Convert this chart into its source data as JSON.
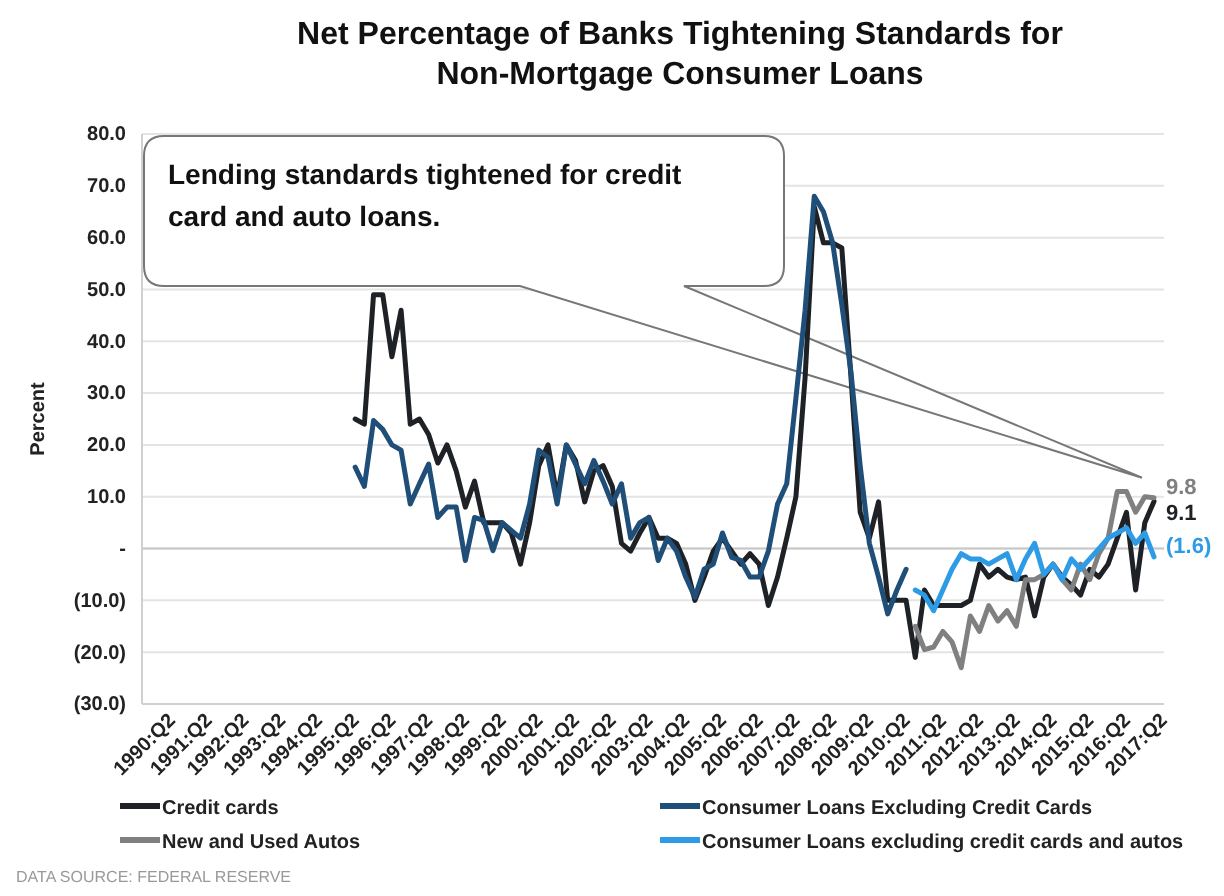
{
  "chart_data": {
    "type": "line",
    "title": "Net Percentage of Banks Tightening Standards for Non-Mortgage Consumer Loans",
    "ylabel": "Percent",
    "categories": [
      "1990:Q2",
      null,
      null,
      null,
      "1991:Q2",
      null,
      null,
      null,
      "1992:Q2",
      null,
      null,
      null,
      "1993:Q2",
      null,
      null,
      null,
      "1994:Q2",
      null,
      null,
      null,
      "1995:Q2",
      null,
      null,
      null,
      "1996:Q2",
      null,
      null,
      null,
      "1997:Q2",
      null,
      null,
      null,
      "1998:Q2",
      null,
      null,
      null,
      "1999:Q2",
      null,
      null,
      null,
      "2000:Q2",
      null,
      null,
      null,
      "2001:Q2",
      null,
      null,
      null,
      "2002:Q2",
      null,
      null,
      null,
      "2003:Q2",
      null,
      null,
      null,
      "2004:Q2",
      null,
      null,
      null,
      "2005:Q2",
      null,
      null,
      null,
      "2006:Q2",
      null,
      null,
      null,
      "2007:Q2",
      null,
      null,
      null,
      "2008:Q2",
      null,
      null,
      null,
      "2009:Q2",
      null,
      null,
      null,
      "2010:Q2",
      null,
      null,
      null,
      "2011:Q2",
      null,
      null,
      null,
      "2012:Q2",
      null,
      null,
      null,
      "2013:Q2",
      null,
      null,
      null,
      "2014:Q2",
      null,
      null,
      null,
      "2015:Q2",
      null,
      null,
      null,
      "2016:Q2",
      null,
      null,
      null,
      "2017:Q2",
      null,
      null
    ],
    "ylim": [
      -30,
      80
    ],
    "yticks": [
      {
        "value": -30,
        "label": "(30.0)"
      },
      {
        "value": -20,
        "label": "(20.0)"
      },
      {
        "value": -10,
        "label": "(10.0)"
      },
      {
        "value": 0,
        "label": "-"
      },
      {
        "value": 10,
        "label": "10.0"
      },
      {
        "value": 20,
        "label": "20.0"
      },
      {
        "value": 30,
        "label": "30.0"
      },
      {
        "value": 40,
        "label": "40.0"
      },
      {
        "value": 50,
        "label": "50.0"
      },
      {
        "value": 60,
        "label": "60.0"
      },
      {
        "value": 70,
        "label": "70.0"
      },
      {
        "value": 80,
        "label": "80.0"
      }
    ],
    "grid": "y",
    "legend": "bottom",
    "marker": "none",
    "line_style": "solid",
    "series": [
      {
        "name": "Credit cards",
        "color": "#1e2227",
        "values": [
          null,
          null,
          null,
          null,
          null,
          null,
          null,
          null,
          null,
          null,
          null,
          null,
          null,
          null,
          null,
          null,
          null,
          null,
          null,
          null,
          null,
          null,
          null,
          25,
          24,
          49,
          49,
          37,
          46,
          24,
          25,
          22,
          16.5,
          20,
          15,
          8,
          13,
          5,
          5,
          5,
          3,
          -3,
          5,
          16,
          20,
          10,
          20,
          17,
          9,
          15,
          16,
          12,
          1,
          -0.5,
          3,
          6,
          2,
          2,
          1,
          -3,
          -10,
          -5.5,
          -0.5,
          2,
          -0.5,
          -3,
          -1,
          -3,
          -11,
          -5.5,
          2,
          10,
          33,
          66,
          59,
          59,
          58,
          33,
          7,
          2,
          9,
          -10,
          -10,
          -10,
          -21,
          -8,
          -11,
          -11,
          -11,
          -11,
          -10,
          -3,
          -5.5,
          -4,
          -5.5,
          -6,
          -5.5,
          -13,
          -5.5,
          -3,
          -5.5,
          -7,
          -9,
          -4,
          -5.5,
          -3,
          2,
          7,
          -8,
          5,
          9.1
        ],
        "value_labels": [
          null,
          null,
          null,
          null,
          null,
          null,
          null,
          null,
          null,
          null,
          null,
          null,
          null,
          null,
          null,
          null,
          null,
          null,
          null,
          null,
          null,
          null,
          null,
          null,
          null,
          null,
          null,
          null,
          null,
          null,
          null,
          null,
          null,
          null,
          null,
          null,
          null,
          null,
          null,
          null,
          null,
          null,
          null,
          null,
          null,
          null,
          null,
          null,
          null,
          null,
          null,
          null,
          null,
          null,
          null,
          null,
          null,
          null,
          null,
          null,
          null,
          null,
          null,
          null,
          null,
          null,
          null,
          null,
          null,
          null,
          null,
          null,
          null,
          null,
          null,
          null,
          null,
          null,
          null,
          null,
          null,
          null,
          null,
          null,
          null,
          null,
          null,
          null,
          null,
          null,
          null,
          null,
          null,
          null,
          null,
          null,
          null,
          null,
          null,
          null,
          null,
          null,
          null,
          null,
          null,
          null,
          null,
          null,
          null,
          null,
          "9.1"
        ]
      },
      {
        "name": "Consumer Loans Excluding Credit Cards",
        "color": "#1f4e79",
        "values": [
          null,
          null,
          null,
          null,
          null,
          null,
          null,
          null,
          null,
          null,
          null,
          null,
          null,
          null,
          null,
          null,
          null,
          null,
          null,
          null,
          null,
          null,
          null,
          15.7,
          12,
          24.7,
          23,
          20,
          19,
          8.6,
          12.5,
          16.3,
          6,
          8,
          8,
          -2.3,
          6,
          5.4,
          -0.4,
          5,
          3.5,
          2,
          8.6,
          19,
          17.6,
          8.6,
          20,
          16.3,
          12.5,
          17,
          13,
          8.6,
          12.5,
          2,
          5,
          6,
          -2.3,
          2,
          -0.5,
          -5.5,
          -9.4,
          -4,
          -3,
          3,
          -1.7,
          -2.3,
          -5.5,
          -5.5,
          -0.5,
          8.6,
          12.5,
          29,
          46,
          68,
          65,
          59,
          47,
          34,
          16,
          1,
          -5.5,
          -12.6,
          -8,
          -4,
          null,
          null,
          null,
          null,
          null,
          null,
          null,
          null,
          null,
          null,
          null,
          null,
          null,
          null,
          null,
          null,
          null,
          null,
          null,
          null,
          null,
          null,
          null,
          null,
          null,
          null,
          null
        ]
      },
      {
        "name": "New and Used Autos",
        "color": "#808080",
        "values": [
          null,
          null,
          null,
          null,
          null,
          null,
          null,
          null,
          null,
          null,
          null,
          null,
          null,
          null,
          null,
          null,
          null,
          null,
          null,
          null,
          null,
          null,
          null,
          null,
          null,
          null,
          null,
          null,
          null,
          null,
          null,
          null,
          null,
          null,
          null,
          null,
          null,
          null,
          null,
          null,
          null,
          null,
          null,
          null,
          null,
          null,
          null,
          null,
          null,
          null,
          null,
          null,
          null,
          null,
          null,
          null,
          null,
          null,
          null,
          null,
          null,
          null,
          null,
          null,
          null,
          null,
          null,
          null,
          null,
          null,
          null,
          null,
          null,
          null,
          null,
          null,
          null,
          null,
          null,
          null,
          null,
          null,
          null,
          null,
          -15,
          -19.5,
          -19,
          -16,
          -18,
          -23,
          -13,
          -16,
          -11,
          -14,
          -12,
          -15,
          -6,
          -6,
          -5,
          -3,
          -6,
          -8,
          -3,
          -6,
          -1,
          2,
          11,
          11,
          7,
          10,
          9.8
        ],
        "value_labels": [
          null,
          null,
          null,
          null,
          null,
          null,
          null,
          null,
          null,
          null,
          null,
          null,
          null,
          null,
          null,
          null,
          null,
          null,
          null,
          null,
          null,
          null,
          null,
          null,
          null,
          null,
          null,
          null,
          null,
          null,
          null,
          null,
          null,
          null,
          null,
          null,
          null,
          null,
          null,
          null,
          null,
          null,
          null,
          null,
          null,
          null,
          null,
          null,
          null,
          null,
          null,
          null,
          null,
          null,
          null,
          null,
          null,
          null,
          null,
          null,
          null,
          null,
          null,
          null,
          null,
          null,
          null,
          null,
          null,
          null,
          null,
          null,
          null,
          null,
          null,
          null,
          null,
          null,
          null,
          null,
          null,
          null,
          null,
          null,
          null,
          null,
          null,
          null,
          null,
          null,
          null,
          null,
          null,
          null,
          null,
          null,
          null,
          null,
          null,
          null,
          null,
          null,
          null,
          null,
          null,
          null,
          null,
          null,
          null,
          null,
          "9.8"
        ]
      },
      {
        "name": "Consumer Loans excluding credit cards and autos",
        "color": "#2e9be6",
        "values": [
          null,
          null,
          null,
          null,
          null,
          null,
          null,
          null,
          null,
          null,
          null,
          null,
          null,
          null,
          null,
          null,
          null,
          null,
          null,
          null,
          null,
          null,
          null,
          null,
          null,
          null,
          null,
          null,
          null,
          null,
          null,
          null,
          null,
          null,
          null,
          null,
          null,
          null,
          null,
          null,
          null,
          null,
          null,
          null,
          null,
          null,
          null,
          null,
          null,
          null,
          null,
          null,
          null,
          null,
          null,
          null,
          null,
          null,
          null,
          null,
          null,
          null,
          null,
          null,
          null,
          null,
          null,
          null,
          null,
          null,
          null,
          null,
          null,
          null,
          null,
          null,
          null,
          null,
          null,
          null,
          null,
          null,
          null,
          null,
          -8,
          -9,
          -12,
          -8,
          -4,
          -1,
          -2,
          -2,
          -3,
          -2,
          -1,
          -6,
          -2,
          1,
          -5,
          -3,
          -6,
          -2,
          -4,
          -2,
          0,
          2,
          3,
          4,
          1,
          3,
          -1.6
        ],
        "value_labels": [
          null,
          null,
          null,
          null,
          null,
          null,
          null,
          null,
          null,
          null,
          null,
          null,
          null,
          null,
          null,
          null,
          null,
          null,
          null,
          null,
          null,
          null,
          null,
          null,
          null,
          null,
          null,
          null,
          null,
          null,
          null,
          null,
          null,
          null,
          null,
          null,
          null,
          null,
          null,
          null,
          null,
          null,
          null,
          null,
          null,
          null,
          null,
          null,
          null,
          null,
          null,
          null,
          null,
          null,
          null,
          null,
          null,
          null,
          null,
          null,
          null,
          null,
          null,
          null,
          null,
          null,
          null,
          null,
          null,
          null,
          null,
          null,
          null,
          null,
          null,
          null,
          null,
          null,
          null,
          null,
          null,
          null,
          null,
          null,
          null,
          null,
          null,
          null,
          null,
          null,
          null,
          null,
          null,
          null,
          null,
          null,
          null,
          null,
          null,
          null,
          null,
          null,
          null,
          null,
          null,
          null,
          null,
          null,
          null,
          null,
          "(1.6)"
        ]
      }
    ],
    "annotations": [
      "Lending standards tightened for credit card and auto loans.",
      "DATA SOURCE: FEDERAL RESERVE"
    ]
  }
}
